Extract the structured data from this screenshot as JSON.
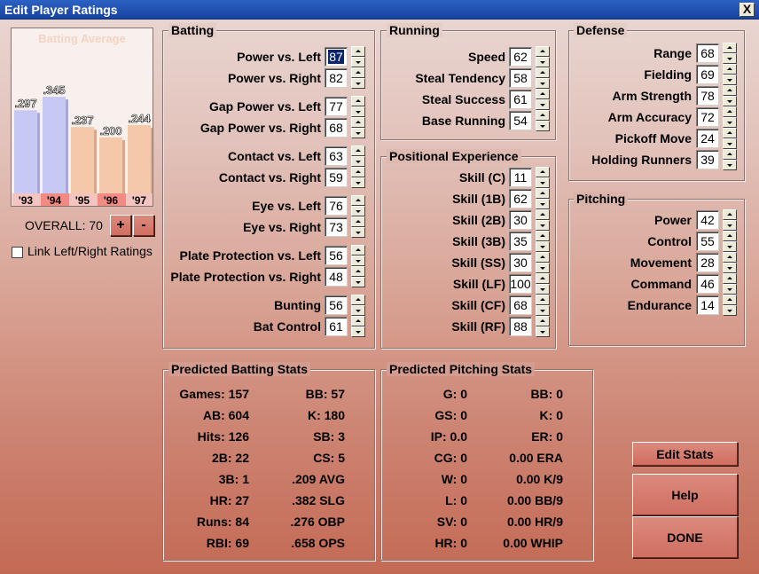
{
  "window": {
    "title": "Edit Player Ratings",
    "close_label": "X"
  },
  "chart_data": {
    "type": "bar",
    "title": "Batting Average",
    "categories": [
      "'93",
      "'94",
      "'95",
      "'96",
      "'97"
    ],
    "values": [
      0.297,
      0.345,
      0.237,
      0.2,
      0.244
    ],
    "value_labels": [
      ".297",
      ".345",
      ".237",
      ".200",
      ".244"
    ],
    "bar_colors": [
      "#c8c8f4",
      "#c8c8f4",
      "#f4c8a8",
      "#f4c8a8",
      "#f4c8a8"
    ],
    "label_colors": [
      "#f4c4c0",
      "#f48a84",
      "#f4c4c0",
      "#f48a84",
      "#f4c4c0"
    ],
    "ylim": [
      0,
      0.4
    ]
  },
  "overall": {
    "label": "OVERALL: 70",
    "plus": "+",
    "minus": "-"
  },
  "link_ratings": {
    "label": "Link Left/Right Ratings",
    "checked": false
  },
  "batting": {
    "legend": "Batting",
    "items": [
      {
        "label": "Power vs. Left",
        "value": "87"
      },
      {
        "label": "Power vs. Right",
        "value": "82"
      },
      {
        "label": "Gap Power vs. Left",
        "value": "77"
      },
      {
        "label": "Gap Power vs. Right",
        "value": "68"
      },
      {
        "label": "Contact vs. Left",
        "value": "63"
      },
      {
        "label": "Contact vs. Right",
        "value": "59"
      },
      {
        "label": "Eye vs. Left",
        "value": "76"
      },
      {
        "label": "Eye vs. Right",
        "value": "73"
      },
      {
        "label": "Plate Protection vs. Left",
        "value": "56"
      },
      {
        "label": "Plate Protection vs. Right",
        "value": "48"
      },
      {
        "label": "Bunting",
        "value": "56"
      },
      {
        "label": "Bat Control",
        "value": "61"
      }
    ]
  },
  "running": {
    "legend": "Running",
    "items": [
      {
        "label": "Speed",
        "value": "62"
      },
      {
        "label": "Steal Tendency",
        "value": "58"
      },
      {
        "label": "Steal Success",
        "value": "61"
      },
      {
        "label": "Base Running",
        "value": "54"
      }
    ]
  },
  "positional": {
    "legend": "Positional Experience",
    "items": [
      {
        "label": "Skill (C)",
        "value": "11"
      },
      {
        "label": "Skill (1B)",
        "value": "62"
      },
      {
        "label": "Skill (2B)",
        "value": "30"
      },
      {
        "label": "Skill (3B)",
        "value": "35"
      },
      {
        "label": "Skill (SS)",
        "value": "30"
      },
      {
        "label": "Skill (LF)",
        "value": "100"
      },
      {
        "label": "Skill (CF)",
        "value": "68"
      },
      {
        "label": "Skill (RF)",
        "value": "88"
      }
    ]
  },
  "defense": {
    "legend": "Defense",
    "items": [
      {
        "label": "Range",
        "value": "68"
      },
      {
        "label": "Fielding",
        "value": "69"
      },
      {
        "label": "Arm Strength",
        "value": "78"
      },
      {
        "label": "Arm Accuracy",
        "value": "72"
      },
      {
        "label": "Pickoff Move",
        "value": "24"
      },
      {
        "label": "Holding Runners",
        "value": "39"
      }
    ]
  },
  "pitching": {
    "legend": "Pitching",
    "items": [
      {
        "label": "Power",
        "value": "42"
      },
      {
        "label": "Control",
        "value": "55"
      },
      {
        "label": "Movement",
        "value": "28"
      },
      {
        "label": "Command",
        "value": "46"
      },
      {
        "label": "Endurance",
        "value": "14"
      }
    ]
  },
  "predicted_batting": {
    "legend": "Predicted Batting Stats",
    "left": [
      "Games: 157",
      "AB: 604",
      "Hits: 126",
      "2B: 22",
      "3B: 1",
      "HR: 27",
      "Runs: 84",
      "RBI: 69"
    ],
    "right": [
      "BB: 57",
      "K: 180",
      "SB: 3",
      "CS: 5",
      ".209 AVG",
      ".382 SLG",
      ".276 OBP",
      ".658 OPS"
    ]
  },
  "predicted_pitching": {
    "legend": "Predicted Pitching Stats",
    "left": [
      "G: 0",
      "GS: 0",
      "IP: 0.0",
      "CG: 0",
      "W: 0",
      "L: 0",
      "SV: 0",
      "HR: 0"
    ],
    "right": [
      "BB: 0",
      "K: 0",
      "ER: 0",
      "0.00 ERA",
      "0.00 K/9",
      "0.00 BB/9",
      "0.00 HR/9",
      "0.00 WHIP"
    ]
  },
  "buttons": {
    "edit_stats": "Edit Stats",
    "help": "Help",
    "done": "DONE"
  }
}
